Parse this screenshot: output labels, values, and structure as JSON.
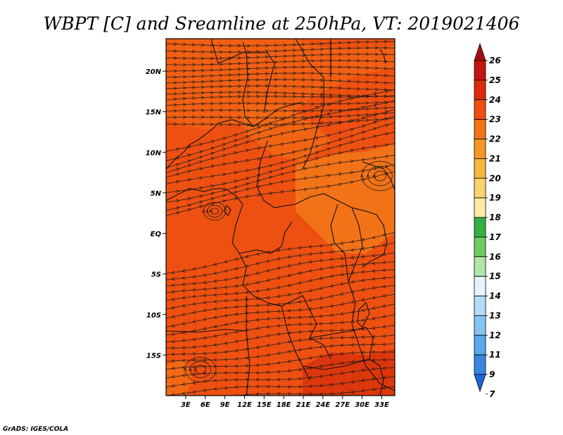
{
  "title": "WBPT [C] and Sreamline at 250hPa, VT: 2019021406",
  "credit": "GrADS: IGES/COLA",
  "map": {
    "lon_range": [
      0,
      35
    ],
    "lat_range": [
      -20,
      24
    ],
    "lon_ticks": [
      {
        "value": 3,
        "label": "3E"
      },
      {
        "value": 6,
        "label": "6E"
      },
      {
        "value": 9,
        "label": "9E"
      },
      {
        "value": 12,
        "label": "12E"
      },
      {
        "value": 15,
        "label": "15E"
      },
      {
        "value": 18,
        "label": "18E"
      },
      {
        "value": 21,
        "label": "21E"
      },
      {
        "value": 24,
        "label": "24E"
      },
      {
        "value": 27,
        "label": "27E"
      },
      {
        "value": 30,
        "label": "30E"
      },
      {
        "value": 33,
        "label": "33E"
      }
    ],
    "lat_ticks": [
      {
        "value": 20,
        "label": "20N"
      },
      {
        "value": 15,
        "label": "15N"
      },
      {
        "value": 10,
        "label": "10N"
      },
      {
        "value": 5,
        "label": "5N"
      },
      {
        "value": 0,
        "label": "EQ"
      },
      {
        "value": -5,
        "label": "5S"
      },
      {
        "value": -10,
        "label": "10S"
      },
      {
        "value": -15,
        "label": "15S"
      }
    ],
    "background_color": "#ee5012"
  },
  "colorbar": {
    "labels": [
      "26",
      "25",
      "24",
      "23",
      "22",
      "21",
      "20",
      "19",
      "18",
      "17",
      "16",
      "15",
      "14",
      "13",
      "12",
      "11",
      "9",
      "7"
    ],
    "colors": [
      "#a50f0f",
      "#c4160e",
      "#de2b0c",
      "#ee5012",
      "#f57214",
      "#f79622",
      "#f8b83c",
      "#f9d56e",
      "#fbeda8",
      "#33b142",
      "#6ccb61",
      "#b4e6a8",
      "#e3f5f8",
      "#b4dcf6",
      "#86c5f3",
      "#5aa7ec",
      "#3787e2",
      "#1f67d4"
    ]
  }
}
